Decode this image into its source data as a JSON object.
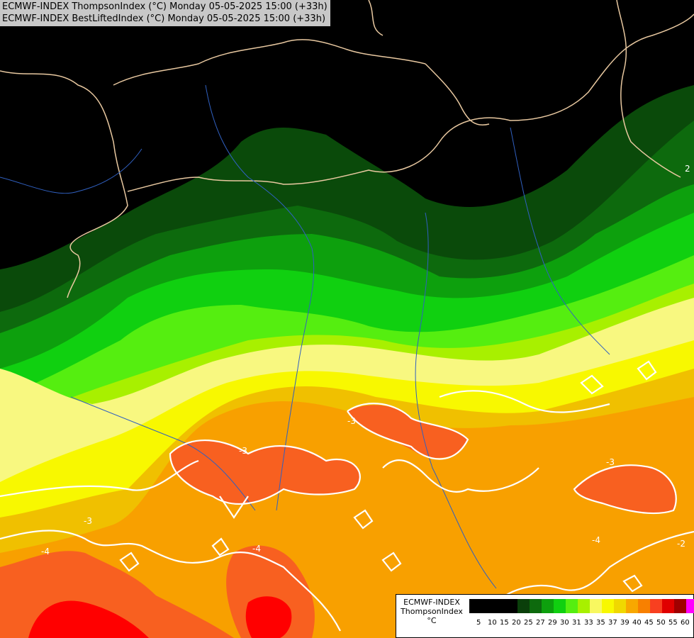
{
  "header": {
    "line1": "ECMWF-INDEX ThompsonIndex (°C) Monday 05-05-2025 15:00 (+33h)",
    "line2": "ECMWF-INDEX BestLiftedIndex (°C) Monday 05-05-2025 15:00 (+33h)"
  },
  "legend": {
    "title_line1": "ECMWF-INDEX",
    "title_line2": "ThompsonIndex",
    "unit": "°C",
    "ticks": [
      "5",
      "10",
      "15",
      "20",
      "25",
      "27",
      "29",
      "30",
      "31",
      "33",
      "35",
      "37",
      "39",
      "40",
      "45",
      "50",
      "55",
      "60"
    ],
    "colors": [
      "#000000",
      "#000000",
      "#000000",
      "#000000",
      "#0a3f0a",
      "#0d6a0d",
      "#0da00d",
      "#10d010",
      "#55ee10",
      "#a8f000",
      "#f8f860",
      "#f8f800",
      "#f0d800",
      "#f8a800",
      "#f88000",
      "#f84020",
      "#e00000",
      "#a00000",
      "#ff00ff",
      "#c000ff",
      "#8000ff",
      "#4000ff",
      "#0000ff"
    ]
  },
  "contour_labels": [
    "-3",
    "-3",
    "-3",
    "-4",
    "-4",
    "-4",
    "2",
    "-2",
    "-3"
  ]
}
